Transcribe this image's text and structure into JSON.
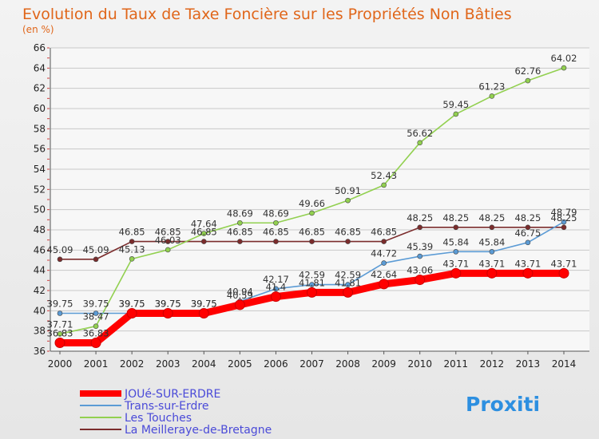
{
  "chart_data": {
    "type": "line",
    "title": "Evolution du Taux de Taxe Foncière sur les Propriétés Non Bâties",
    "unit_label": "(en %)",
    "x": [
      "2000",
      "2001",
      "2002",
      "2003",
      "2004",
      "2005",
      "2006",
      "2007",
      "2008",
      "2009",
      "2010",
      "2011",
      "2012",
      "2013",
      "2014"
    ],
    "ylim": [
      36,
      66
    ],
    "yticks": [
      36,
      38,
      40,
      42,
      44,
      46,
      48,
      50,
      52,
      54,
      56,
      58,
      60,
      62,
      64,
      66
    ],
    "grid": "horizontal",
    "legend_position": "bottom-left",
    "series": [
      {
        "name": "JOUé-SUR-ERDRE",
        "color": "#ff0000",
        "values": [
          36.83,
          36.83,
          39.75,
          39.75,
          39.75,
          40.59,
          41.4,
          41.81,
          41.81,
          42.64,
          43.06,
          43.71,
          43.71,
          43.71,
          43.71
        ],
        "labels": [
          "36.83",
          "36.83",
          "39.75",
          "39.75",
          "39.75",
          "40.59",
          "41.4",
          "41.81",
          "41.81",
          "42.64",
          "43.06",
          "43.71",
          "43.71",
          "43.71",
          "43.71"
        ]
      },
      {
        "name": "Trans-sur-Erdre",
        "color": "#5b9bd5",
        "values": [
          39.75,
          39.75,
          39.75,
          39.75,
          39.75,
          40.94,
          42.17,
          42.59,
          42.59,
          44.72,
          45.39,
          45.84,
          45.84,
          46.75,
          48.79
        ],
        "labels": [
          "39.75",
          "39.75",
          "39.75",
          "39.75",
          "39.75",
          "40.94",
          "42.17",
          "42.59",
          "42.59",
          "44.72",
          "45.39",
          "45.84",
          "45.84",
          "46.75",
          "48.79"
        ]
      },
      {
        "name": "Les Touches",
        "color": "#92d050",
        "values": [
          37.71,
          38.47,
          45.13,
          46.03,
          47.64,
          48.69,
          48.69,
          49.66,
          50.91,
          52.43,
          56.62,
          59.45,
          61.23,
          62.76,
          64.02
        ],
        "labels": [
          "37.71",
          "38.47",
          "45.13",
          "46.03",
          "47.64",
          "48.69",
          "48.69",
          "49.66",
          "50.91",
          "52.43",
          "56.62",
          "59.45",
          "61.23",
          "62.76",
          "64.02"
        ]
      },
      {
        "name": "La Meilleraye-de-Bretagne",
        "color": "#7b2c2c",
        "values": [
          45.09,
          45.09,
          46.85,
          46.85,
          46.85,
          46.85,
          46.85,
          46.85,
          46.85,
          46.85,
          48.25,
          48.25,
          48.25,
          48.25,
          48.25
        ],
        "labels": [
          "45.09",
          "45.09",
          "46.85",
          "46.85",
          "46.85",
          "46.85",
          "46.85",
          "46.85",
          "46.85",
          "46.85",
          "48.25",
          "48.25",
          "48.25",
          "48.25",
          "48.25"
        ]
      }
    ]
  },
  "branding": {
    "logo_text": "Proxiti"
  }
}
